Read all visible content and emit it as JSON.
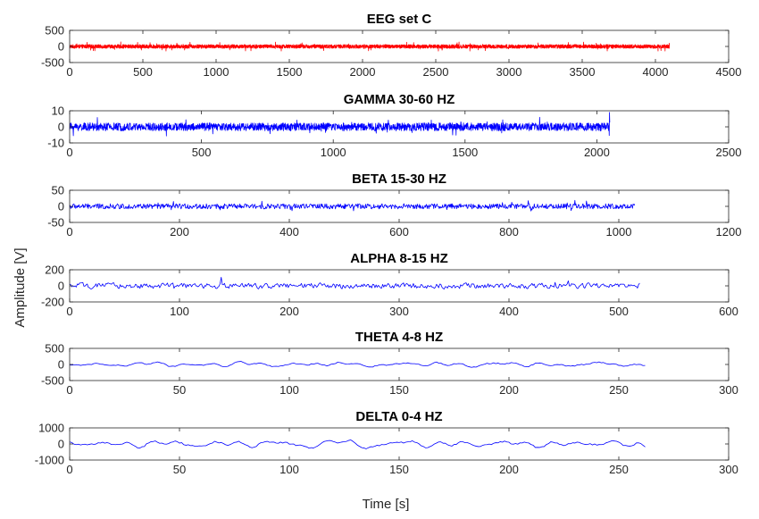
{
  "figure": {
    "ylabel": "Amplitude [V]",
    "xlabel": "Time [s]"
  },
  "chart_data": [
    {
      "type": "line",
      "title": "EEG set C",
      "color": "#ff0000",
      "xlim": [
        0,
        4500
      ],
      "ylim": [
        -500,
        500
      ],
      "xticks": [
        0,
        500,
        1000,
        1500,
        2000,
        2500,
        3000,
        3500,
        4000,
        4500
      ],
      "yticks": [
        -500,
        0,
        500
      ],
      "n_points": 4097,
      "amplitude": 60,
      "noise": "fine",
      "end_spike": 100
    },
    {
      "type": "line",
      "title": "GAMMA 30-60 HZ",
      "color": "#0000ff",
      "xlim": [
        0,
        2500
      ],
      "ylim": [
        -10,
        10
      ],
      "xticks": [
        0,
        500,
        1000,
        1500,
        2000,
        2500
      ],
      "yticks": [
        -10,
        0,
        10
      ],
      "n_points": 2050,
      "amplitude": 2.5,
      "noise": "fine",
      "end_spike": 9
    },
    {
      "type": "line",
      "title": "BETA 15-30 HZ",
      "color": "#0000ff",
      "xlim": [
        0,
        1200
      ],
      "ylim": [
        -50,
        50
      ],
      "xticks": [
        0,
        200,
        400,
        600,
        800,
        1000,
        1200
      ],
      "yticks": [
        -50,
        0,
        50
      ],
      "n_points": 1030,
      "amplitude": 8,
      "noise": "fine",
      "end_spike": 0
    },
    {
      "type": "line",
      "title": "ALPHA 8-15 HZ",
      "color": "#0000ff",
      "xlim": [
        0,
        600
      ],
      "ylim": [
        -200,
        200
      ],
      "xticks": [
        0,
        100,
        200,
        300,
        400,
        500,
        600
      ],
      "yticks": [
        -200,
        0,
        200
      ],
      "n_points": 520,
      "amplitude": 30,
      "noise": "medium",
      "end_spike": 0
    },
    {
      "type": "line",
      "title": "THETA 4-8 HZ",
      "color": "#0000ff",
      "xlim": [
        0,
        300
      ],
      "ylim": [
        -500,
        500
      ],
      "xticks": [
        0,
        50,
        100,
        150,
        200,
        250,
        300
      ],
      "yticks": [
        -500,
        0,
        500
      ],
      "n_points": 263,
      "amplitude": 90,
      "noise": "smooth",
      "end_spike": 0
    },
    {
      "type": "line",
      "title": "DELTA 0-4 HZ",
      "color": "#0000ff",
      "xlim": [
        0,
        300
      ],
      "ylim": [
        -1000,
        1000
      ],
      "xticks": [
        0,
        50,
        100,
        150,
        200,
        250,
        300
      ],
      "yticks": [
        -1000,
        0,
        1000
      ],
      "n_points": 263,
      "amplitude": 260,
      "noise": "smooth",
      "end_spike": 0
    }
  ]
}
